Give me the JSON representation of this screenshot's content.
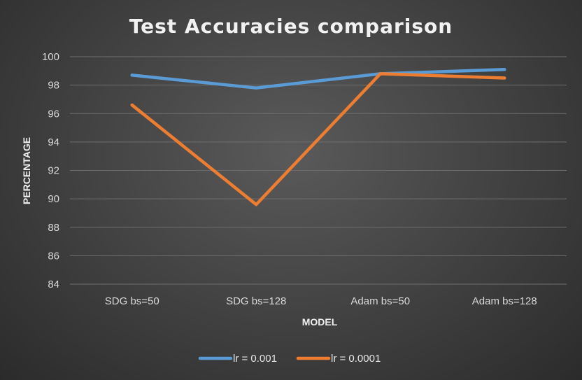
{
  "chart_data": {
    "type": "line",
    "title": "Test Accuracies comparison",
    "xlabel": "MODEL",
    "ylabel": "PERCENTAGE",
    "categories": [
      "SDG bs=50",
      "SDG bs=128",
      "Adam bs=50",
      "Adam bs=128"
    ],
    "ylim": [
      84,
      100
    ],
    "yticks": [
      84,
      86,
      88,
      90,
      92,
      94,
      96,
      98,
      100
    ],
    "grid": true,
    "legend_position": "bottom",
    "series": [
      {
        "name": "lr = 0.001",
        "color": "#5b9bd5",
        "values": [
          98.7,
          97.8,
          98.8,
          99.1
        ]
      },
      {
        "name": "lr = 0.0001",
        "color": "#ed7d31",
        "values": [
          96.6,
          89.6,
          98.8,
          98.5
        ]
      }
    ]
  }
}
